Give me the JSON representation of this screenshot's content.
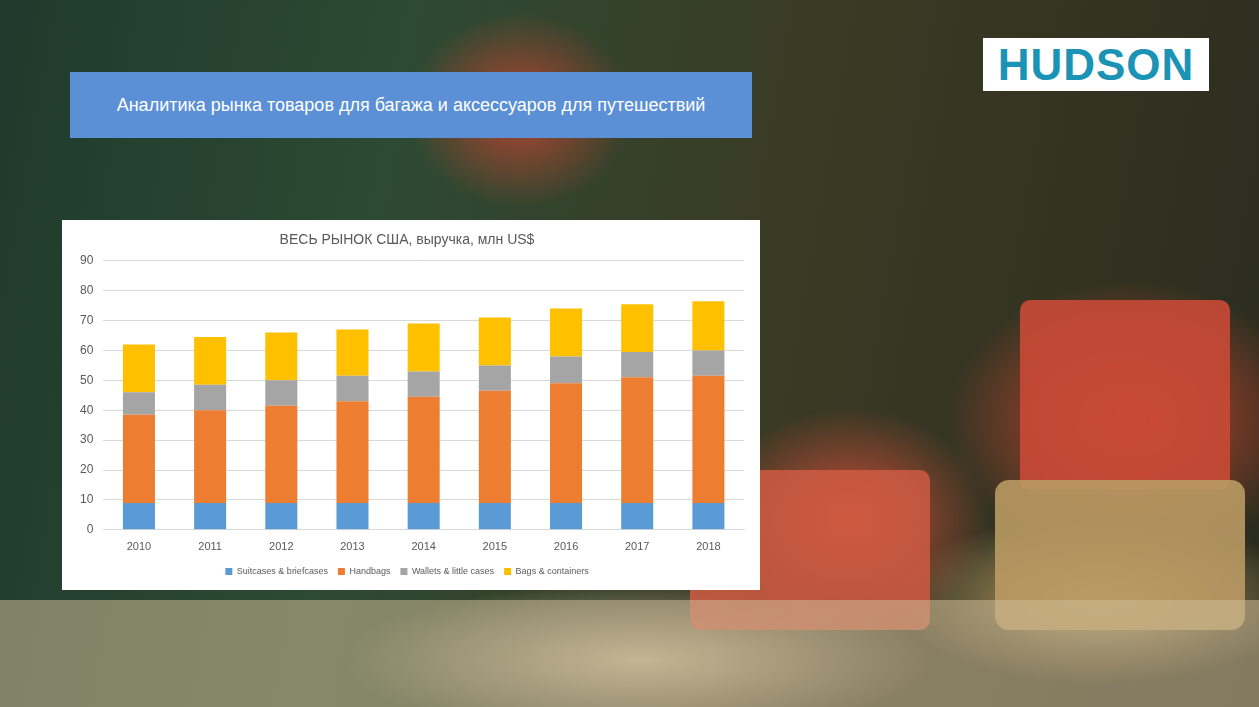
{
  "slide": {
    "title": "Аналитика рынка товаров для багажа и аксессуаров для путешествий",
    "logo": "HUDSON"
  },
  "chart_data": {
    "type": "bar",
    "title": "ВЕСЬ РЫНОК США, выручка, млн US$",
    "categories": [
      "2010",
      "2011",
      "2012",
      "2013",
      "2014",
      "2015",
      "2016",
      "2017",
      "2018"
    ],
    "series": [
      {
        "name": "Suitcases & briefcases",
        "color": "#5b9bd5",
        "values": [
          9,
          9,
          9,
          9,
          9,
          9,
          9,
          9,
          9
        ]
      },
      {
        "name": "Handbags",
        "color": "#ed7d31",
        "values": [
          29.5,
          31,
          32.5,
          34,
          35.5,
          37.5,
          40,
          42,
          42.5
        ]
      },
      {
        "name": "Wallets & little cases",
        "color": "#a5a5a5",
        "values": [
          7.5,
          8.5,
          8.5,
          8.5,
          8.5,
          8.5,
          9,
          8.5,
          8.5
        ]
      },
      {
        "name": "Bags & containers",
        "color": "#ffc000",
        "values": [
          16,
          16,
          16,
          15.5,
          16,
          16,
          16,
          16,
          16.5
        ]
      }
    ],
    "stacked": true,
    "grid": true,
    "legend": "bottom",
    "ylim": [
      0,
      90
    ],
    "yticks": [
      0,
      10,
      20,
      30,
      40,
      50,
      60,
      70,
      80,
      90
    ]
  }
}
